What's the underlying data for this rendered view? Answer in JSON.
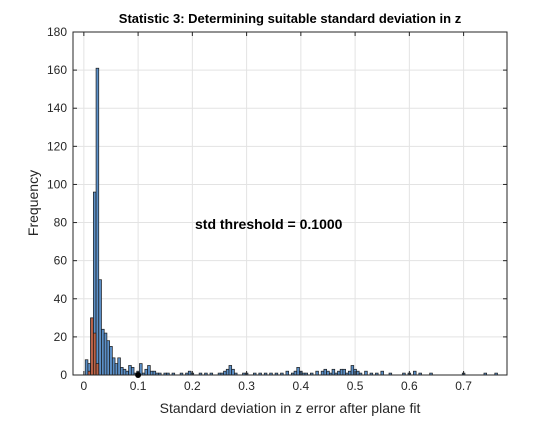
{
  "chart_data": {
    "type": "bar",
    "title": "Statistic 3: Determining suitable standard deviation in z",
    "xlabel": "Standard deviation in z error after plane fit",
    "ylabel": "Frequency",
    "xlim": [
      -0.02,
      0.78
    ],
    "ylim": [
      0,
      180
    ],
    "xticks": [
      0,
      0.1,
      0.2,
      0.3,
      0.4,
      0.5,
      0.6,
      0.7
    ],
    "xtick_labels": [
      "0",
      "0.1",
      "0.2",
      "0.3",
      "0.4",
      "0.5",
      "0.6",
      "0.7"
    ],
    "yticks": [
      0,
      20,
      40,
      60,
      80,
      100,
      120,
      140,
      160,
      180
    ],
    "ytick_labels": [
      "0",
      "20",
      "40",
      "60",
      "80",
      "100",
      "120",
      "140",
      "160",
      "180"
    ],
    "grid": true,
    "annotation": "std threshold = 0.1000",
    "threshold": 0.1,
    "bin_width": 0.005,
    "bar_color": "#5b8fc7",
    "bar_edge": "#1a1a1a",
    "highlight_color": "#d9531e",
    "threshold_marker_color": "#000000",
    "series": [
      {
        "values": [
          [
            0.005,
            8
          ],
          [
            0.01,
            6
          ],
          [
            0.015,
            30
          ],
          [
            0.02,
            96
          ],
          [
            0.025,
            161
          ],
          [
            0.03,
            50
          ],
          [
            0.035,
            24
          ],
          [
            0.04,
            22
          ],
          [
            0.045,
            18
          ],
          [
            0.05,
            15
          ],
          [
            0.055,
            9
          ],
          [
            0.06,
            6
          ],
          [
            0.065,
            9
          ],
          [
            0.07,
            4
          ],
          [
            0.075,
            3
          ],
          [
            0.08,
            2
          ],
          [
            0.085,
            5
          ],
          [
            0.09,
            4
          ],
          [
            0.095,
            1
          ],
          [
            0.1,
            2
          ],
          [
            0.105,
            6
          ],
          [
            0.11,
            1
          ],
          [
            0.115,
            3
          ],
          [
            0.12,
            5
          ],
          [
            0.125,
            2
          ],
          [
            0.13,
            2
          ],
          [
            0.135,
            1
          ],
          [
            0.14,
            1
          ],
          [
            0.15,
            1
          ],
          [
            0.155,
            1
          ],
          [
            0.165,
            1
          ],
          [
            0.18,
            1
          ],
          [
            0.19,
            1
          ],
          [
            0.195,
            2
          ],
          [
            0.2,
            1
          ],
          [
            0.215,
            1
          ],
          [
            0.225,
            1
          ],
          [
            0.235,
            1
          ],
          [
            0.25,
            1
          ],
          [
            0.255,
            1
          ],
          [
            0.26,
            2
          ],
          [
            0.265,
            3
          ],
          [
            0.27,
            5
          ],
          [
            0.275,
            3
          ],
          [
            0.28,
            1
          ],
          [
            0.295,
            1
          ],
          [
            0.3,
            1
          ],
          [
            0.315,
            1
          ],
          [
            0.325,
            1
          ],
          [
            0.335,
            1
          ],
          [
            0.345,
            1
          ],
          [
            0.355,
            1
          ],
          [
            0.365,
            1
          ],
          [
            0.375,
            2
          ],
          [
            0.385,
            1
          ],
          [
            0.39,
            2
          ],
          [
            0.395,
            4
          ],
          [
            0.4,
            2
          ],
          [
            0.405,
            1
          ],
          [
            0.41,
            1
          ],
          [
            0.42,
            1
          ],
          [
            0.43,
            2
          ],
          [
            0.44,
            2
          ],
          [
            0.445,
            3
          ],
          [
            0.45,
            2
          ],
          [
            0.455,
            1
          ],
          [
            0.46,
            3
          ],
          [
            0.465,
            1
          ],
          [
            0.47,
            2
          ],
          [
            0.475,
            3
          ],
          [
            0.48,
            3
          ],
          [
            0.485,
            1
          ],
          [
            0.49,
            2
          ],
          [
            0.495,
            5
          ],
          [
            0.5,
            3
          ],
          [
            0.505,
            2
          ],
          [
            0.51,
            1
          ],
          [
            0.52,
            2
          ],
          [
            0.53,
            1
          ],
          [
            0.54,
            1
          ],
          [
            0.55,
            2
          ],
          [
            0.565,
            1
          ],
          [
            0.59,
            1
          ],
          [
            0.6,
            1
          ],
          [
            0.61,
            2
          ],
          [
            0.62,
            1
          ],
          [
            0.64,
            1
          ],
          [
            0.7,
            1
          ],
          [
            0.74,
            1
          ],
          [
            0.76,
            1
          ]
        ]
      },
      {
        "values": [
          [
            0.01,
            2
          ],
          [
            0.015,
            30
          ],
          [
            0.02,
            22
          ],
          [
            0.025,
            6
          ]
        ]
      }
    ]
  }
}
